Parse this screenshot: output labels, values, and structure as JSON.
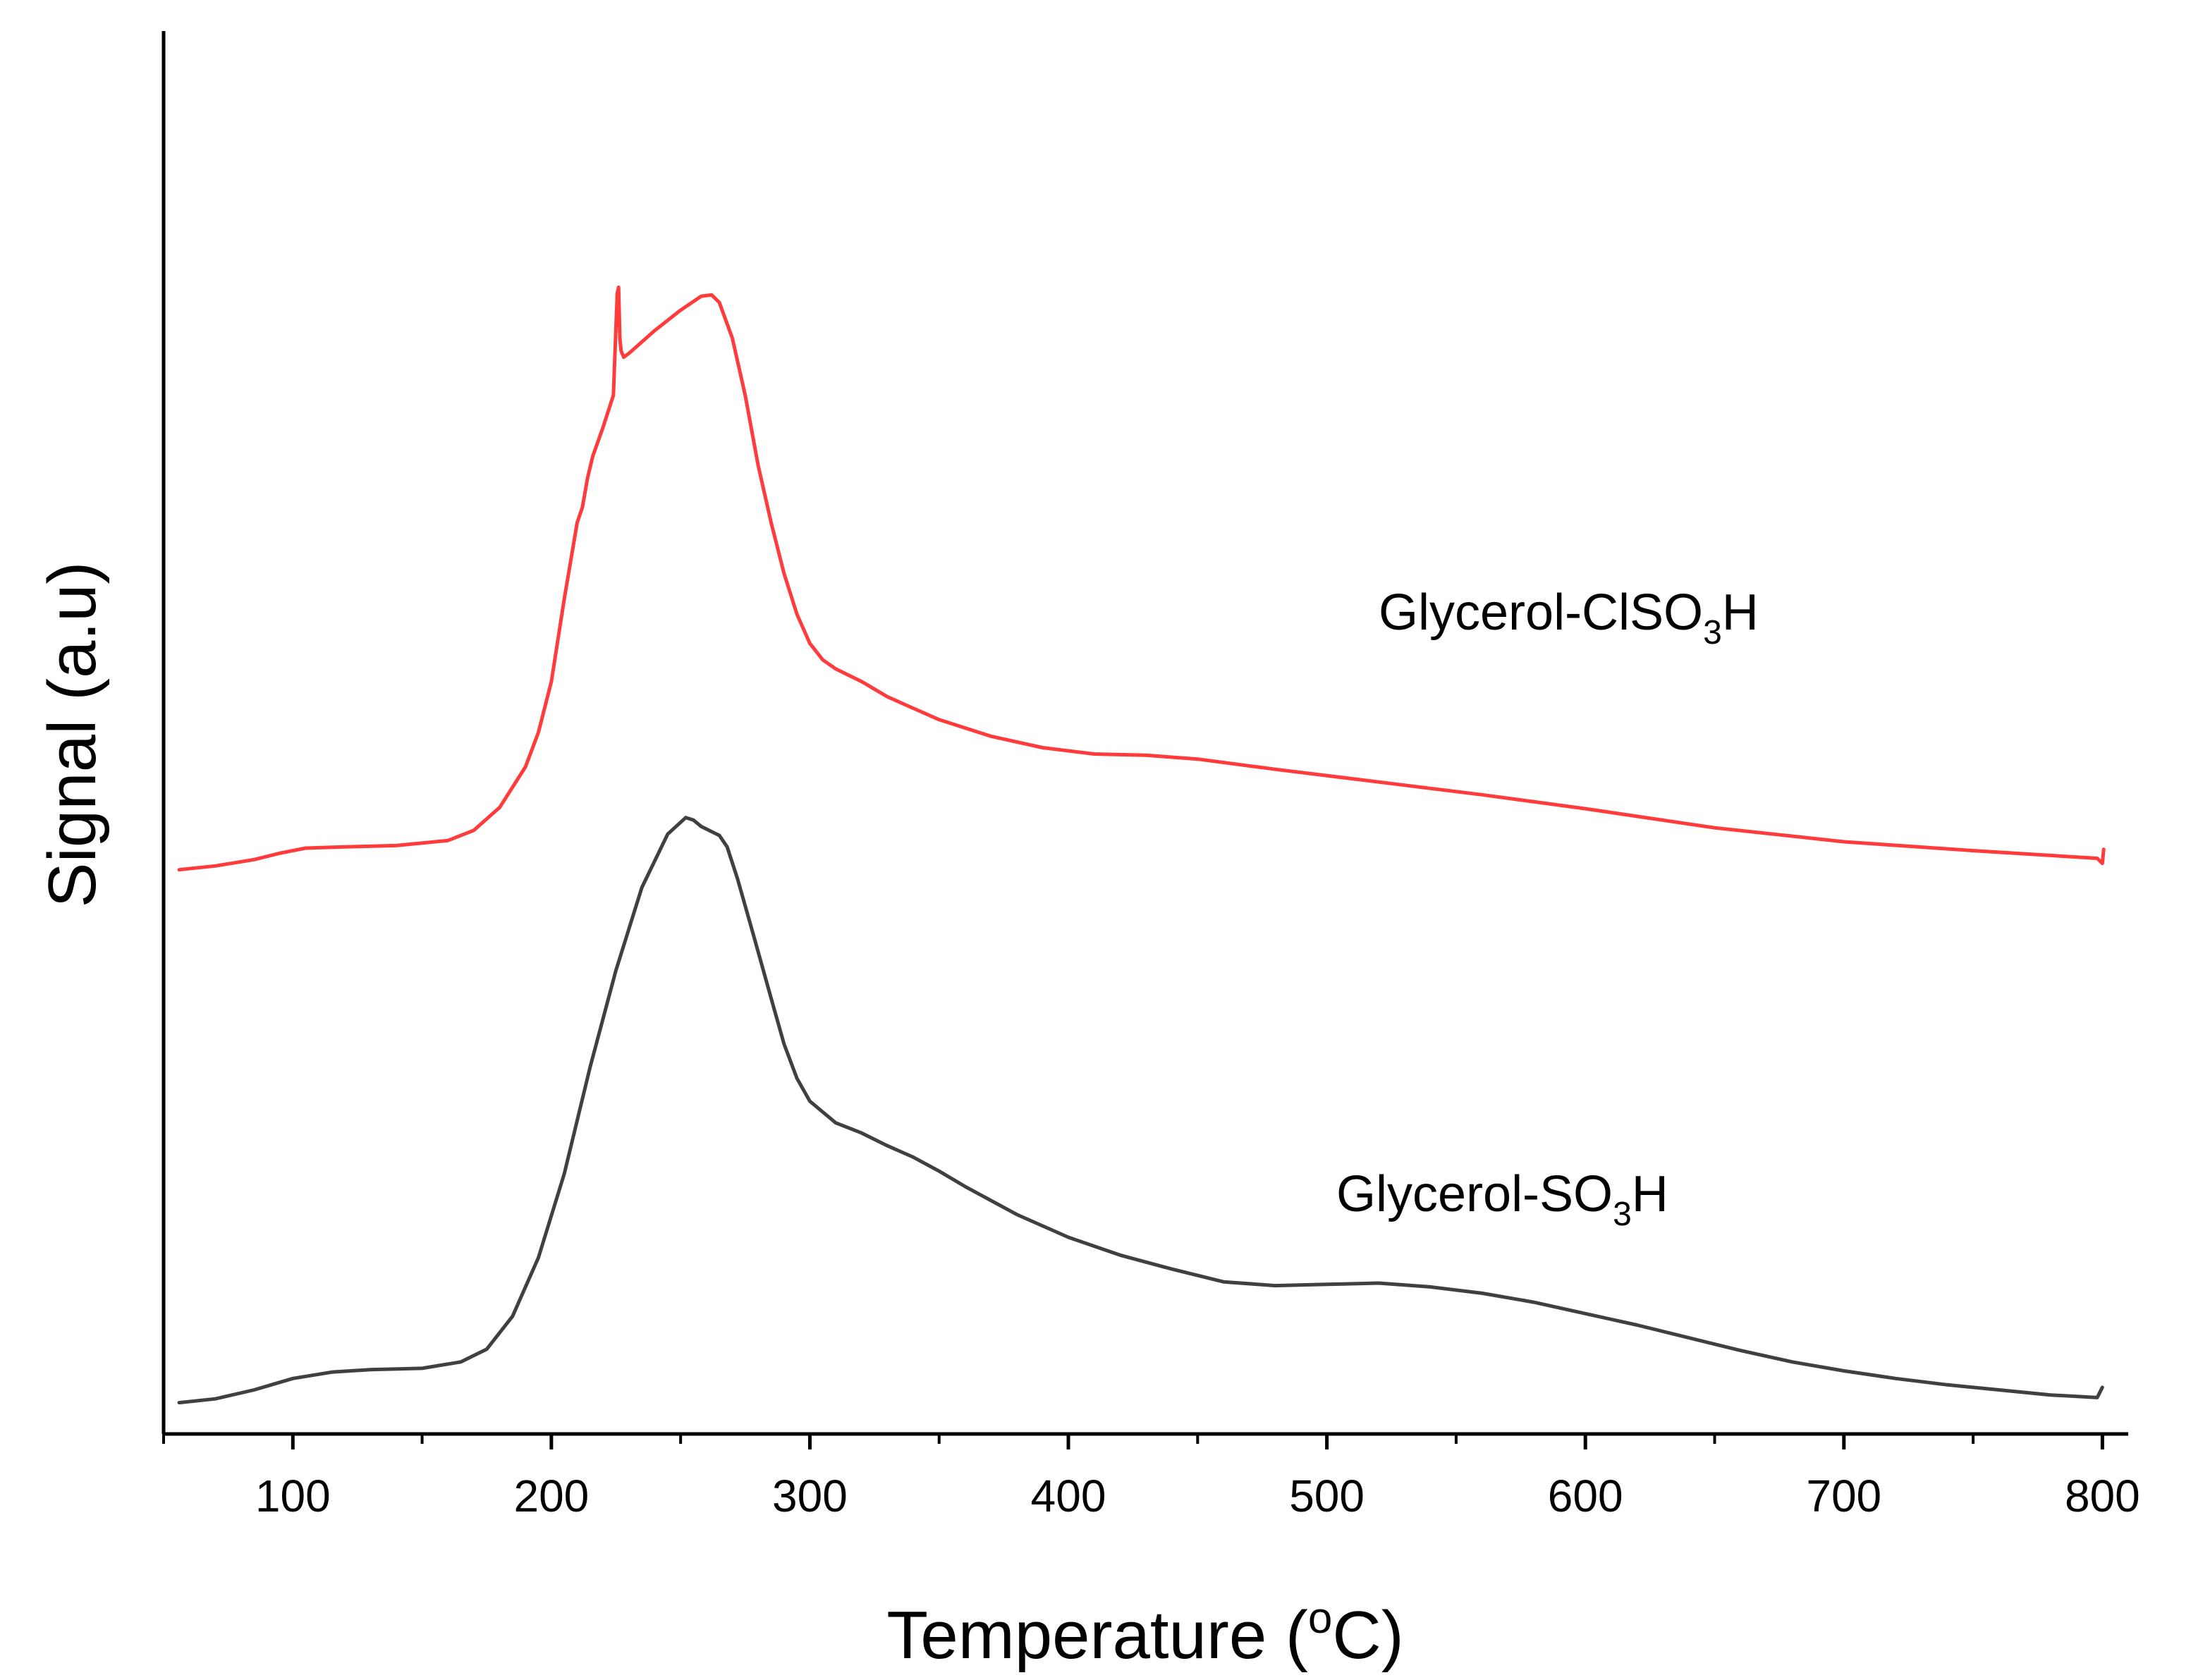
{
  "chart_data": {
    "type": "line",
    "title": "",
    "xlabel": {
      "pre": "Temperature (",
      "sup": "o",
      "post": "C)"
    },
    "ylabel": "Signal (a.u)",
    "xlim": [
      50,
      810
    ],
    "ylim": [
      0,
      1
    ],
    "xticks": [
      100,
      200,
      300,
      400,
      500,
      600,
      700,
      800
    ],
    "xtick_labels": [
      "100",
      "200",
      "300",
      "400",
      "500",
      "600",
      "700",
      "800"
    ],
    "minor_xticks": [
      50,
      150,
      250,
      350,
      450,
      550,
      650,
      750
    ],
    "y_ticks_shown": false,
    "grid": false,
    "series": [
      {
        "name": "Glycerol-ClSO3H",
        "label": {
          "pre": "Glycerol-ClSO",
          "sub": "3",
          "post": "H"
        },
        "color": "#ff3b3b",
        "x": [
          56,
          70,
          85,
          95,
          105,
          120,
          140,
          160,
          170,
          180,
          190,
          195,
          200,
          205,
          210,
          212,
          214,
          216,
          220,
          224,
          225.5,
          226,
          226.5,
          227,
          228,
          230,
          235,
          240,
          250,
          258,
          262,
          265,
          270,
          275,
          280,
          285,
          290,
          295,
          300,
          305,
          310,
          320,
          330,
          340,
          350,
          370,
          390,
          410,
          430,
          450,
          480,
          520,
          560,
          600,
          650,
          700,
          750,
          798,
          800,
          800.5
        ],
        "y": [
          0.427,
          0.43,
          0.435,
          0.44,
          0.444,
          0.445,
          0.446,
          0.45,
          0.458,
          0.476,
          0.508,
          0.535,
          0.575,
          0.64,
          0.7,
          0.712,
          0.735,
          0.752,
          0.775,
          0.8,
          0.88,
          0.885,
          0.845,
          0.835,
          0.83,
          0.833,
          0.842,
          0.851,
          0.867,
          0.878,
          0.879,
          0.873,
          0.845,
          0.8,
          0.745,
          0.7,
          0.66,
          0.628,
          0.605,
          0.592,
          0.585,
          0.575,
          0.563,
          0.554,
          0.545,
          0.532,
          0.523,
          0.518,
          0.517,
          0.514,
          0.506,
          0.496,
          0.486,
          0.475,
          0.46,
          0.449,
          0.442,
          0.436,
          0.432,
          0.443
        ]
      },
      {
        "name": "Glycerol-SO3H",
        "label": {
          "pre": "Glycerol-SO",
          "sub": "3",
          "post": "H"
        },
        "color": "#404040",
        "x": [
          56,
          70,
          85,
          100,
          115,
          130,
          150,
          165,
          175,
          185,
          195,
          205,
          215,
          225,
          235,
          245,
          252,
          255,
          258,
          262,
          265,
          268,
          272,
          278,
          285,
          290,
          295,
          300,
          310,
          320,
          330,
          340,
          350,
          360,
          380,
          400,
          420,
          440,
          460,
          480,
          500,
          520,
          540,
          560,
          580,
          600,
          620,
          640,
          660,
          680,
          700,
          720,
          740,
          760,
          780,
          798,
          800
        ],
        "y": [
          0.008,
          0.011,
          0.018,
          0.027,
          0.032,
          0.034,
          0.035,
          0.04,
          0.05,
          0.076,
          0.122,
          0.188,
          0.272,
          0.348,
          0.413,
          0.455,
          0.468,
          0.466,
          0.461,
          0.457,
          0.454,
          0.445,
          0.42,
          0.377,
          0.326,
          0.29,
          0.263,
          0.245,
          0.228,
          0.22,
          0.21,
          0.201,
          0.19,
          0.178,
          0.156,
          0.138,
          0.124,
          0.113,
          0.103,
          0.1,
          0.101,
          0.102,
          0.099,
          0.094,
          0.087,
          0.078,
          0.069,
          0.059,
          0.049,
          0.04,
          0.033,
          0.027,
          0.022,
          0.018,
          0.014,
          0.012,
          0.02
        ]
      }
    ]
  }
}
